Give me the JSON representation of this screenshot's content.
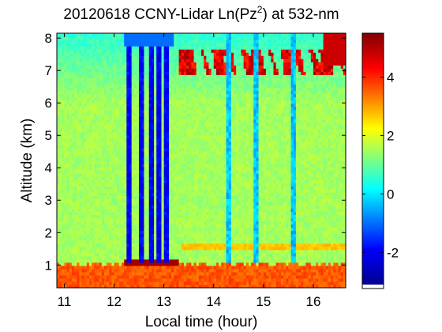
{
  "chart_data": {
    "type": "heatmap",
    "title_main": "20120618 CCNY-Lidar Ln(Pz",
    "title_sup": "2",
    "title_tail": ") at 532-nm",
    "xlabel": "Local time (hour)",
    "ylabel": "Altitude (km)",
    "xlim": [
      10.85,
      16.65
    ],
    "ylim": [
      0.3,
      8.15
    ],
    "xticks": [
      "11",
      "12",
      "13",
      "14",
      "15",
      "16"
    ],
    "yticks": [
      "1",
      "2",
      "3",
      "4",
      "5",
      "6",
      "7",
      "8"
    ],
    "colorbar": {
      "range": [
        -3.1,
        5.5
      ],
      "ticks": [
        "-2",
        "0",
        "2",
        "4"
      ],
      "colormap": "jet",
      "colors": [
        "#00008f",
        "#0000ff",
        "#00ffff",
        "#ffff00",
        "#ff0000",
        "#800000"
      ]
    },
    "features": {
      "background_level": 1.5,
      "boundary_layer": {
        "top_km": 1.05,
        "value": 3.6
      },
      "residual_layer": {
        "altitude_km": 1.55,
        "x_start": 13.35,
        "value": 2.5
      },
      "cirrus_cloud": {
        "base_km": 6.9,
        "top_km": 7.7,
        "x_start": 13.3,
        "value": 5.3
      },
      "dark_streaks_hour": [
        12.3,
        12.55,
        12.75,
        12.9,
        13.05,
        14.3,
        14.85,
        15.6
      ]
    }
  }
}
